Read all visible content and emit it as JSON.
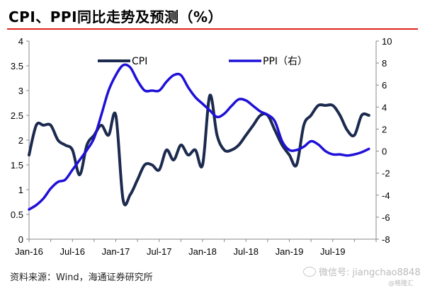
{
  "title": "CPI、PPI同比走势及预测（%）",
  "source": "资料来源：Wind，海通证券研究所",
  "watermark": "微信号: jiangchao8848",
  "watermark_small": "@格隆汇",
  "colors": {
    "cpi": "#1b2a4e",
    "ppi": "#1f10d8",
    "rule": "#e0211b"
  },
  "chart_data": {
    "type": "line",
    "title": "CPI、PPI同比走势及预测（%）",
    "x_tick_labels": [
      "Jan-16",
      "Jul-16",
      "Jan-17",
      "Jul-17",
      "Jan-18",
      "Jul-18",
      "Jan-19",
      "Jul-19"
    ],
    "x_tick_months": [
      0,
      6,
      12,
      18,
      24,
      30,
      36,
      42
    ],
    "x_range_months": [
      0,
      48
    ],
    "y_left": {
      "min": 0,
      "max": 4,
      "ticks": [
        "0",
        "0.5",
        "1",
        "1.5",
        "2",
        "2.5",
        "3",
        "3.5",
        "4"
      ],
      "tick_values": [
        0,
        0.5,
        1,
        1.5,
        2,
        2.5,
        3,
        3.5,
        4
      ]
    },
    "y_right": {
      "min": -8,
      "max": 10,
      "ticks": [
        "-8",
        "-6",
        "-4",
        "-2",
        "0",
        "2",
        "4",
        "6",
        "8",
        "10"
      ],
      "tick_values": [
        -8,
        -6,
        -4,
        -2,
        0,
        2,
        4,
        6,
        8,
        10
      ]
    },
    "legend": [
      "CPI",
      "PPI（右）"
    ],
    "series": [
      {
        "name": "CPI",
        "axis": "left",
        "x": [
          0,
          1,
          2,
          3,
          4,
          5,
          6,
          7,
          8,
          9,
          10,
          11,
          12,
          13,
          14,
          15,
          16,
          17,
          18,
          19,
          20,
          21,
          22,
          23,
          24,
          25,
          26,
          27,
          28,
          29,
          30,
          31,
          32,
          33,
          34,
          35,
          36,
          37,
          38,
          39,
          40,
          41,
          42,
          43,
          44,
          45,
          46,
          47
        ],
        "values": [
          1.7,
          2.3,
          2.3,
          2.3,
          2.0,
          1.9,
          1.8,
          1.3,
          1.9,
          2.1,
          2.3,
          2.1,
          2.5,
          0.8,
          0.9,
          1.2,
          1.5,
          1.5,
          1.4,
          1.8,
          1.6,
          1.9,
          1.7,
          1.8,
          1.5,
          2.9,
          2.1,
          1.8,
          1.8,
          1.9,
          2.1,
          2.3,
          2.5,
          2.5,
          2.2,
          1.9,
          1.7,
          1.5,
          2.3,
          2.5,
          2.7,
          2.7,
          2.7,
          2.5,
          2.2,
          2.1,
          2.5,
          2.5
        ]
      },
      {
        "name": "PPI（右）",
        "axis": "right",
        "x": [
          0,
          1,
          2,
          3,
          4,
          5,
          6,
          7,
          8,
          9,
          10,
          11,
          12,
          13,
          14,
          15,
          16,
          17,
          18,
          19,
          20,
          21,
          22,
          23,
          24,
          25,
          26,
          27,
          28,
          29,
          30,
          31,
          32,
          33,
          34,
          35,
          36,
          37,
          38,
          39,
          40,
          41,
          42,
          43,
          44,
          45,
          46,
          47
        ],
        "values": [
          -5.3,
          -4.9,
          -4.3,
          -3.4,
          -2.8,
          -2.6,
          -1.7,
          -0.8,
          0.1,
          1.2,
          3.3,
          5.5,
          6.9,
          7.8,
          7.6,
          6.4,
          5.5,
          5.5,
          5.5,
          6.3,
          6.9,
          6.9,
          5.8,
          4.9,
          4.3,
          3.7,
          3.1,
          3.4,
          4.1,
          4.7,
          4.6,
          4.1,
          3.6,
          3.3,
          2.7,
          0.9,
          0.1,
          0.1,
          0.4,
          0.9,
          0.6,
          0.0,
          -0.3,
          -0.3,
          -0.4,
          -0.3,
          -0.1,
          0.2
        ]
      }
    ]
  }
}
